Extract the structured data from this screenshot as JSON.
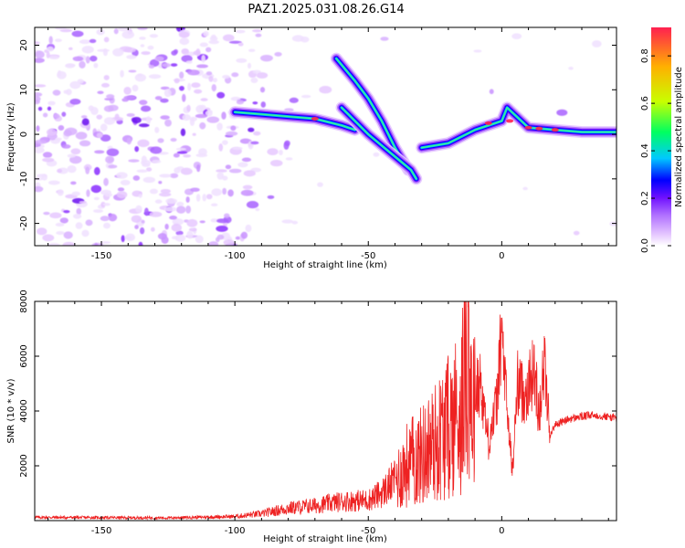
{
  "title": "PAZ1.2025.031.08.26.G14",
  "chart_data": [
    {
      "type": "heatmap",
      "xlabel": "Height of straight line (km)",
      "ylabel": "Frequency (Hz)",
      "xlim": [
        -175,
        43
      ],
      "ylim": [
        -25,
        24
      ],
      "xticks": [
        -150,
        -100,
        -50,
        0
      ],
      "yticks": [
        -20,
        -10,
        0,
        10,
        20
      ],
      "colorbar": {
        "label": "Normalized spectral amplitude",
        "range": [
          0,
          0.92
        ],
        "ticks": [
          "0.0",
          "0.2",
          "0.4",
          "0.6",
          "0.8"
        ],
        "colors": [
          "#ffffff",
          "#e6c8ff",
          "#b070ff",
          "#7010ff",
          "#0000ff",
          "#00c8ff",
          "#00ff60",
          "#c8ff00",
          "#ffb000",
          "#ff2050"
        ]
      },
      "ridges": [
        {
          "x": [
            -100,
            -90,
            -80,
            -70,
            -60,
            -55
          ],
          "y": [
            5,
            4.5,
            4,
            3.5,
            2,
            1
          ]
        },
        {
          "x": [
            -62,
            -55,
            -50,
            -45,
            -40,
            -35
          ],
          "y": [
            17,
            12,
            8,
            3,
            -3,
            -8
          ]
        },
        {
          "x": [
            -60,
            -50,
            -42,
            -38,
            -34,
            -32
          ],
          "y": [
            6,
            0,
            -4,
            -6,
            -8,
            -10
          ]
        },
        {
          "x": [
            -30,
            -20,
            -10,
            0,
            2,
            10,
            20,
            30,
            43
          ],
          "y": [
            -3,
            -2,
            1,
            3,
            6,
            1.5,
            1,
            0.5,
            0.5
          ]
        }
      ]
    },
    {
      "type": "line",
      "xlabel": "Height of straight line (km)",
      "ylabel": "SNR (10 * v/v)",
      "xlim": [
        -175,
        43
      ],
      "ylim": [
        0,
        8000
      ],
      "xticks": [
        -150,
        -100,
        -50,
        0
      ],
      "yticks": [
        2000,
        4000,
        6000,
        8000
      ],
      "series": [
        {
          "color": "#ee2222",
          "x": [
            -175,
            -150,
            -125,
            -100,
            -90,
            -80,
            -70,
            -60,
            -50,
            -45,
            -40,
            -35,
            -30,
            -25,
            -20,
            -17,
            -15,
            -13,
            -11,
            -8,
            -5,
            -2,
            0,
            2,
            4,
            6,
            8,
            10,
            12,
            14,
            16,
            18,
            20,
            25,
            30,
            35,
            43
          ],
          "y": [
            120,
            110,
            100,
            150,
            250,
            450,
            550,
            700,
            750,
            1000,
            1500,
            2200,
            2500,
            3000,
            3600,
            4100,
            4300,
            7900,
            4400,
            5100,
            2900,
            4200,
            6900,
            4000,
            1800,
            5100,
            4600,
            4900,
            5500,
            4000,
            5800,
            3100,
            3500,
            3700,
            3800,
            3850,
            3750
          ]
        }
      ]
    }
  ]
}
